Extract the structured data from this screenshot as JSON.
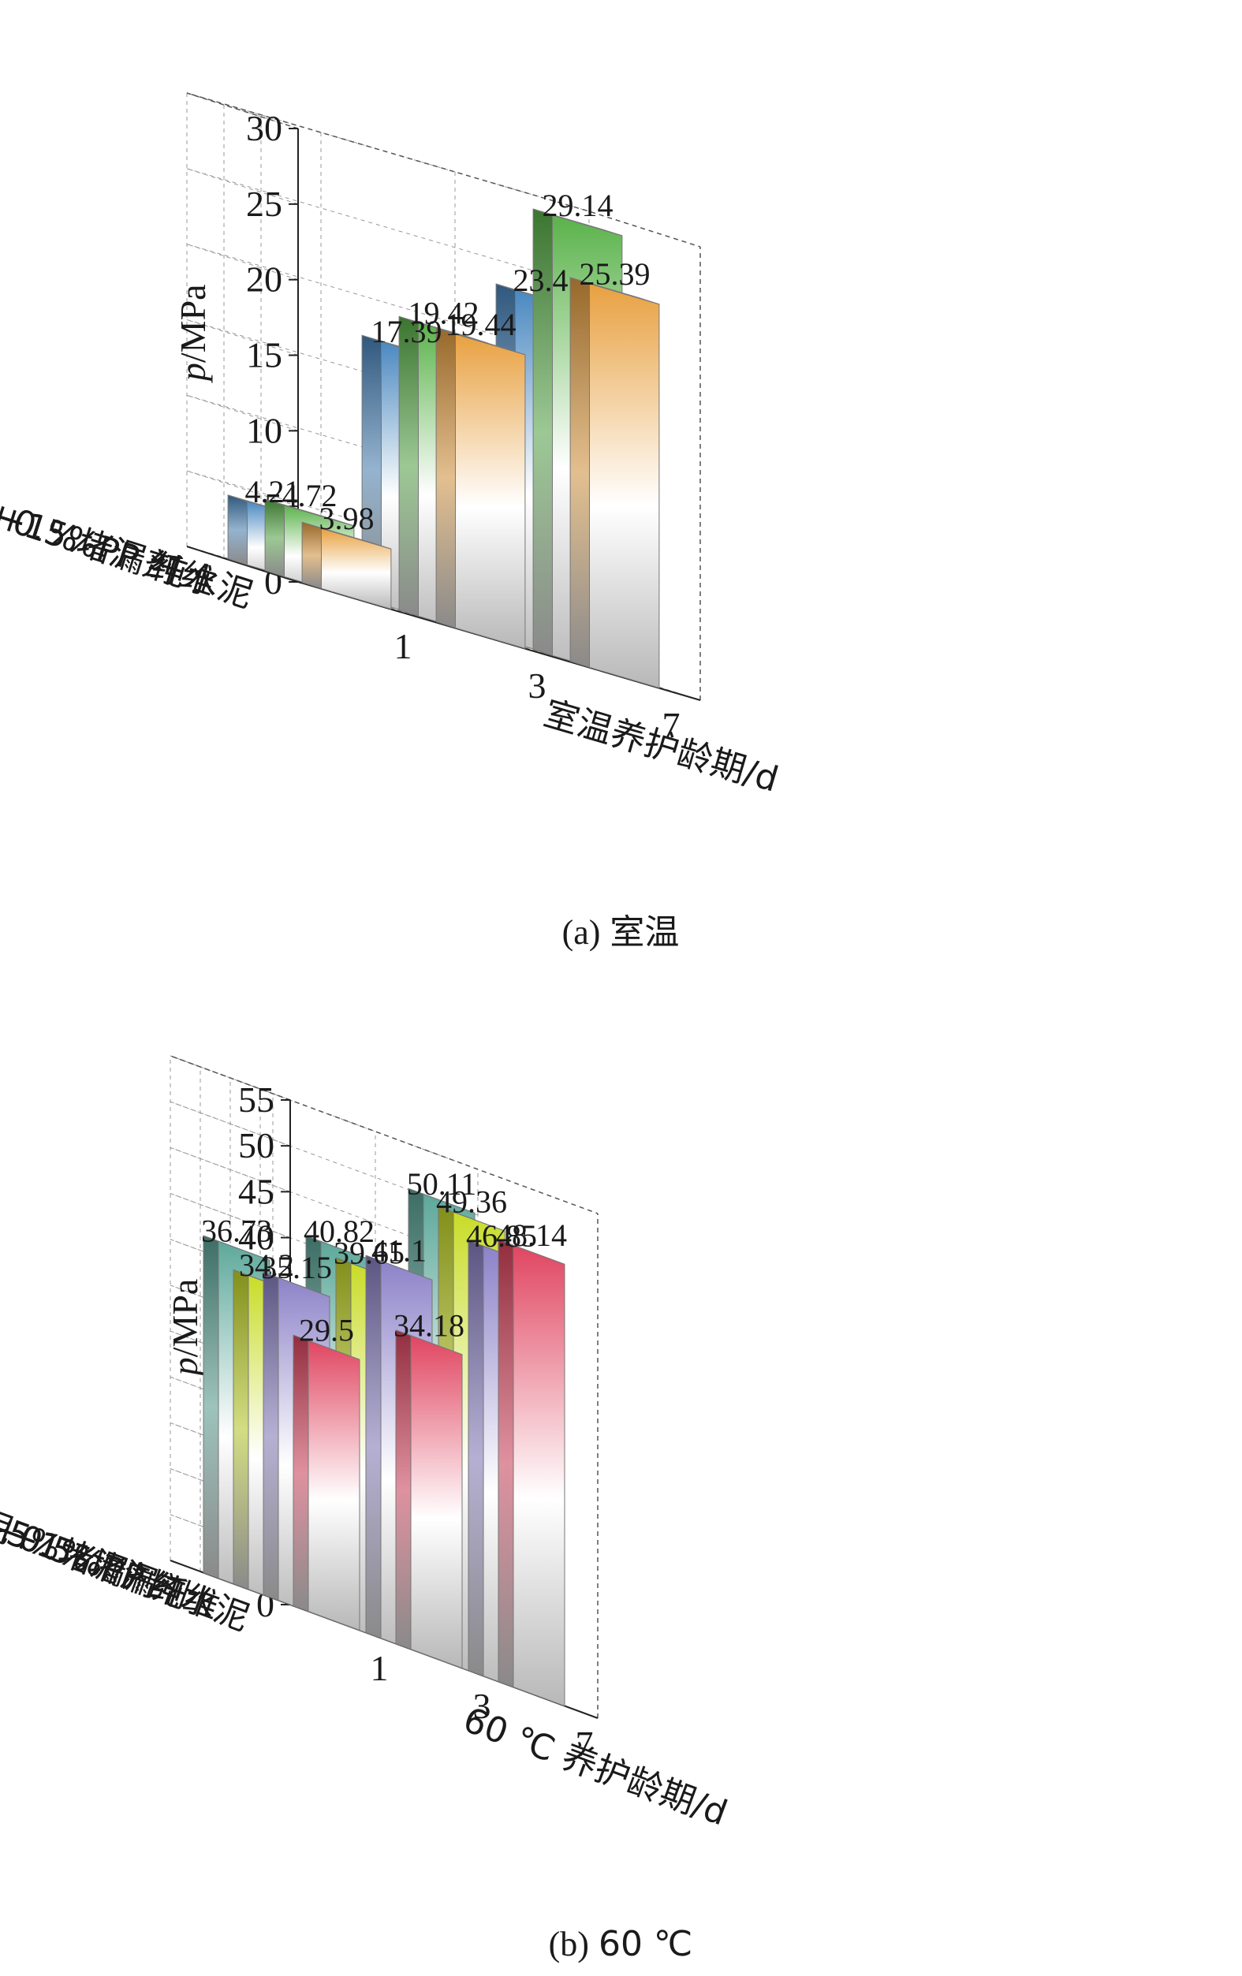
{
  "chart_data": [
    {
      "type": "bar",
      "caption_prefix": "(a)",
      "caption_main": "室温",
      "ylabel_italic": "p",
      "ylabel_rest": "/MPa",
      "xlabel": "室温养护龄期/d",
      "x": [
        "1",
        "3",
        "7"
      ],
      "rows": [
        "纯水泥",
        "水泥 +0.5%PP 纤维",
        "水泥+1%堵漏剂"
      ],
      "ylim": [
        0,
        30
      ],
      "yticks": [
        0,
        5,
        10,
        15,
        20,
        25,
        30
      ],
      "series": [
        {
          "name": "纯水泥",
          "values": [
            3.98,
            19.44,
            25.39
          ],
          "labels": [
            "3.98",
            "19.44",
            "25.39"
          ],
          "color": "#e8a040"
        },
        {
          "name": "水泥 +0.5%PP 纤维",
          "values": [
            4.72,
            19.42,
            29.14
          ],
          "labels": [
            "4.72",
            "19.42",
            "29.14"
          ],
          "color": "#5ab24a"
        },
        {
          "name": "水泥+1%堵漏剂",
          "values": [
            4.21,
            17.39,
            23.4
          ],
          "labels": [
            "4.21",
            "17.39",
            "23.4"
          ],
          "color": "#4a88c0"
        }
      ]
    },
    {
      "type": "bar",
      "caption_prefix": "(b)",
      "caption_main": "60 ℃",
      "ylabel_italic": "p",
      "ylabel_rest": "/MPa",
      "xlabel": "60 ℃ 养护龄期/d",
      "x": [
        "1",
        "3",
        "7"
      ],
      "rows": [
        "纯水泥",
        "水泥 +0.5%PP 纤维",
        "水泥+1%堵漏剂",
        "水泥+5%堵漏剂"
      ],
      "ylim": [
        0,
        55
      ],
      "yticks": [
        0,
        5,
        10,
        15,
        20,
        25,
        30,
        35,
        40,
        45,
        50,
        55
      ],
      "series": [
        {
          "name": "纯水泥",
          "values": [
            29.5,
            34.18,
            48.14
          ],
          "labels": [
            "29.5",
            "34.18",
            "48.14"
          ],
          "color": "#e04560"
        },
        {
          "name": "水泥 +0.5%PP 纤维",
          "values": [
            35.15,
            41.1,
            46.85
          ],
          "labels": [
            "35.15",
            "41.1",
            "46.85"
          ],
          "color": "#8c82c8"
        },
        {
          "name": "水泥+1%堵漏剂",
          "values": [
            34.2,
            39.65,
            49.36
          ],
          "labels": [
            "34.2",
            "39.65",
            "49.36"
          ],
          "color": "#c8dc28"
        },
        {
          "name": "水泥+5%堵漏剂",
          "values": [
            36.73,
            40.82,
            50.11
          ],
          "labels": [
            "36.73",
            "40.82",
            "50.11"
          ],
          "color": "#5ca89a"
        }
      ]
    }
  ]
}
